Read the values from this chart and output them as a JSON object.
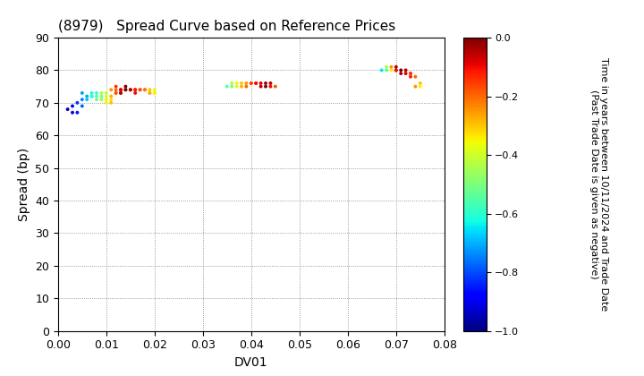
{
  "title": "(8979)   Spread Curve based on Reference Prices",
  "xlabel": "DV01",
  "ylabel": "Spread (bp)",
  "xlim": [
    0.0,
    0.08
  ],
  "ylim": [
    0,
    90
  ],
  "xticks": [
    0.0,
    0.01,
    0.02,
    0.03,
    0.04,
    0.05,
    0.06,
    0.07,
    0.08
  ],
  "yticks": [
    0,
    10,
    20,
    30,
    40,
    50,
    60,
    70,
    80,
    90
  ],
  "colorbar_label": "Time in years between 10/11/2024 and Trade Date\n(Past Trade Date is given as negative)",
  "colorbar_vmin": -1.0,
  "colorbar_vmax": 0.0,
  "colorbar_ticks": [
    0.0,
    -0.2,
    -0.4,
    -0.6,
    -0.8,
    -1.0
  ],
  "cluster1_x": [
    0.002,
    0.003,
    0.003,
    0.004,
    0.004,
    0.005,
    0.005,
    0.005,
    0.006,
    0.006,
    0.007,
    0.007,
    0.007,
    0.008,
    0.008,
    0.008,
    0.009,
    0.009,
    0.009,
    0.01,
    0.01,
    0.01,
    0.01,
    0.011,
    0.011,
    0.011,
    0.011,
    0.012,
    0.012,
    0.012,
    0.012,
    0.013,
    0.013,
    0.013,
    0.013,
    0.014,
    0.014,
    0.014,
    0.015,
    0.015,
    0.016,
    0.016,
    0.016,
    0.017,
    0.017,
    0.018,
    0.018,
    0.019,
    0.019,
    0.019,
    0.02,
    0.02,
    0.02
  ],
  "cluster1_y": [
    68,
    67,
    69,
    67,
    70,
    69,
    71,
    73,
    72,
    71,
    72,
    73,
    72,
    73,
    72,
    71,
    72,
    71,
    73,
    73,
    71,
    72,
    70,
    71,
    70,
    72,
    74,
    73,
    74,
    73,
    75,
    73,
    74,
    74,
    73,
    74,
    74,
    75,
    74,
    74,
    74,
    73,
    74,
    74,
    74,
    74,
    74,
    73,
    73,
    74,
    73,
    73,
    74
  ],
  "cluster1_c": [
    -0.95,
    -0.92,
    -0.88,
    -0.85,
    -0.82,
    -0.78,
    -0.75,
    -0.72,
    -0.7,
    -0.68,
    -0.65,
    -0.62,
    -0.6,
    -0.58,
    -0.55,
    -0.52,
    -0.5,
    -0.48,
    -0.45,
    -0.43,
    -0.4,
    -0.38,
    -0.35,
    -0.33,
    -0.3,
    -0.28,
    -0.25,
    -0.22,
    -0.2,
    -0.18,
    -0.15,
    -0.12,
    -0.1,
    -0.08,
    -0.05,
    -0.03,
    -0.01,
    0.0,
    -0.03,
    -0.05,
    -0.08,
    -0.1,
    -0.12,
    -0.15,
    -0.18,
    -0.2,
    -0.22,
    -0.25,
    -0.28,
    -0.3,
    -0.32,
    -0.35,
    -0.38
  ],
  "cluster2_x": [
    0.035,
    0.036,
    0.036,
    0.037,
    0.037,
    0.038,
    0.038,
    0.039,
    0.039,
    0.04,
    0.04,
    0.041,
    0.041,
    0.042,
    0.042,
    0.043,
    0.043,
    0.044,
    0.044,
    0.045
  ],
  "cluster2_y": [
    75,
    75,
    76,
    75,
    76,
    76,
    75,
    76,
    75,
    76,
    76,
    76,
    76,
    76,
    75,
    76,
    75,
    76,
    75,
    75
  ],
  "cluster2_c": [
    -0.55,
    -0.5,
    -0.45,
    -0.4,
    -0.35,
    -0.3,
    -0.28,
    -0.25,
    -0.2,
    -0.18,
    -0.15,
    -0.12,
    -0.1,
    -0.08,
    -0.05,
    -0.03,
    0.0,
    -0.05,
    -0.1,
    -0.18
  ],
  "cluster3_x": [
    0.067,
    0.068,
    0.068,
    0.069,
    0.069,
    0.07,
    0.07,
    0.07,
    0.071,
    0.071,
    0.072,
    0.072,
    0.073,
    0.073,
    0.073,
    0.074,
    0.074,
    0.075,
    0.075
  ],
  "cluster3_y": [
    80,
    80,
    81,
    80,
    81,
    80,
    80,
    81,
    80,
    79,
    80,
    79,
    79,
    78,
    79,
    78,
    75,
    76,
    75
  ],
  "cluster3_c": [
    -0.65,
    -0.55,
    -0.45,
    -0.35,
    -0.25,
    -0.15,
    -0.1,
    -0.05,
    0.0,
    -0.03,
    -0.05,
    -0.08,
    -0.1,
    -0.12,
    -0.15,
    -0.2,
    -0.25,
    -0.3,
    -0.35
  ],
  "bg_color": "#ffffff",
  "point_size": 8,
  "title_fontsize": 11,
  "axis_fontsize": 10,
  "colorbar_fontsize": 8
}
